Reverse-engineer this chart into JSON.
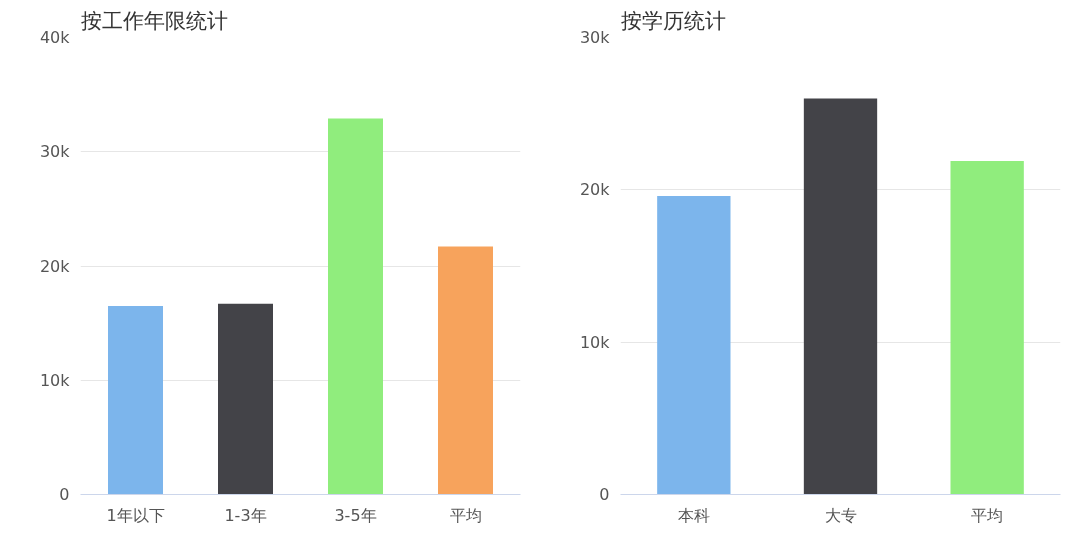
{
  "chart_data": [
    {
      "type": "bar",
      "title": "按工作年限统计",
      "categories": [
        "1年以下",
        "1-3年",
        "3-5年",
        "平均"
      ],
      "values": [
        16500,
        16700,
        32900,
        21700
      ],
      "colors": [
        "#7cb5ec",
        "#434348",
        "#90ed7d",
        "#f7a35c"
      ],
      "ylim": [
        0,
        40000
      ],
      "yticks": [
        0,
        {
          "value": 10000,
          "label": "10k"
        },
        {
          "value": 20000,
          "label": "20k"
        },
        {
          "value": 30000,
          "label": "30k"
        },
        {
          "value": 40000,
          "label": "40k"
        }
      ],
      "grid": "y"
    },
    {
      "type": "bar",
      "title": "按学历统计",
      "categories": [
        "本科",
        "大专",
        "平均"
      ],
      "values": [
        19600,
        26000,
        21900
      ],
      "colors": [
        "#7cb5ec",
        "#434348",
        "#90ed7d"
      ],
      "ylim": [
        0,
        30000
      ],
      "yticks": [
        0,
        {
          "value": 10000,
          "label": "10k"
        },
        {
          "value": 20000,
          "label": "20k"
        },
        {
          "value": 30000,
          "label": "30k"
        }
      ],
      "grid": "y"
    }
  ]
}
